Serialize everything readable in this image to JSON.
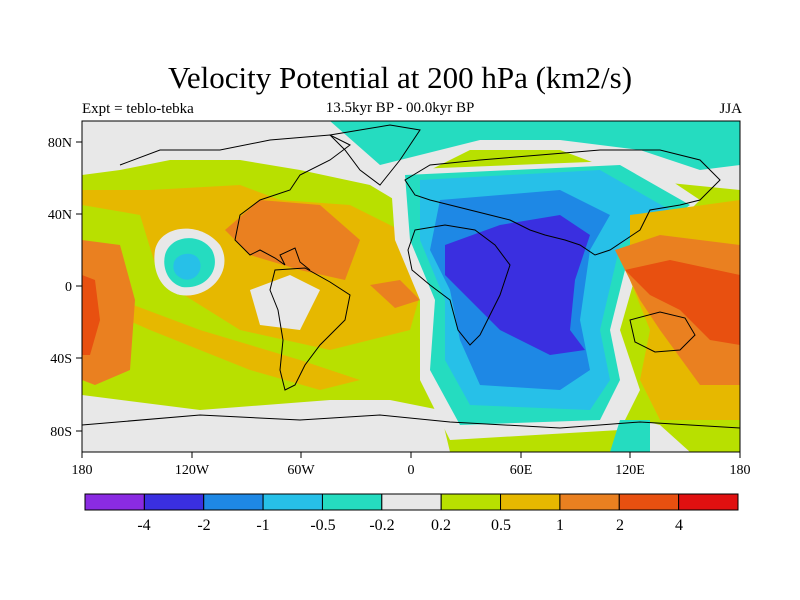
{
  "header": {
    "title": "Velocity Potential at 200 hPa (km2/s)",
    "subtitle": "13.5kyr BP - 00.0kyr BP",
    "experiment": "Expt = teblo-tebka",
    "season": "JJA"
  },
  "axes": {
    "lat_labels": [
      "80N",
      "40N",
      "0",
      "40S",
      "80S"
    ],
    "lon_labels": [
      "180",
      "120W",
      "60W",
      "0",
      "60E",
      "120E",
      "180"
    ]
  },
  "colorbar": {
    "labels": [
      "-4",
      "-2",
      "-1",
      "-0.5",
      "-0.2",
      "0.2",
      "0.5",
      "1",
      "2",
      "4"
    ],
    "colors": [
      "#8a2be2",
      "#3a2fe0",
      "#1e88e5",
      "#27c0e8",
      "#25dcc0",
      "#e8e8e8",
      "#b8e000",
      "#e6b800",
      "#ea8020",
      "#e85010",
      "#e01010"
    ]
  },
  "colors": {
    "land_outline": "#000000",
    "neutral": "#e8e8e8"
  }
}
